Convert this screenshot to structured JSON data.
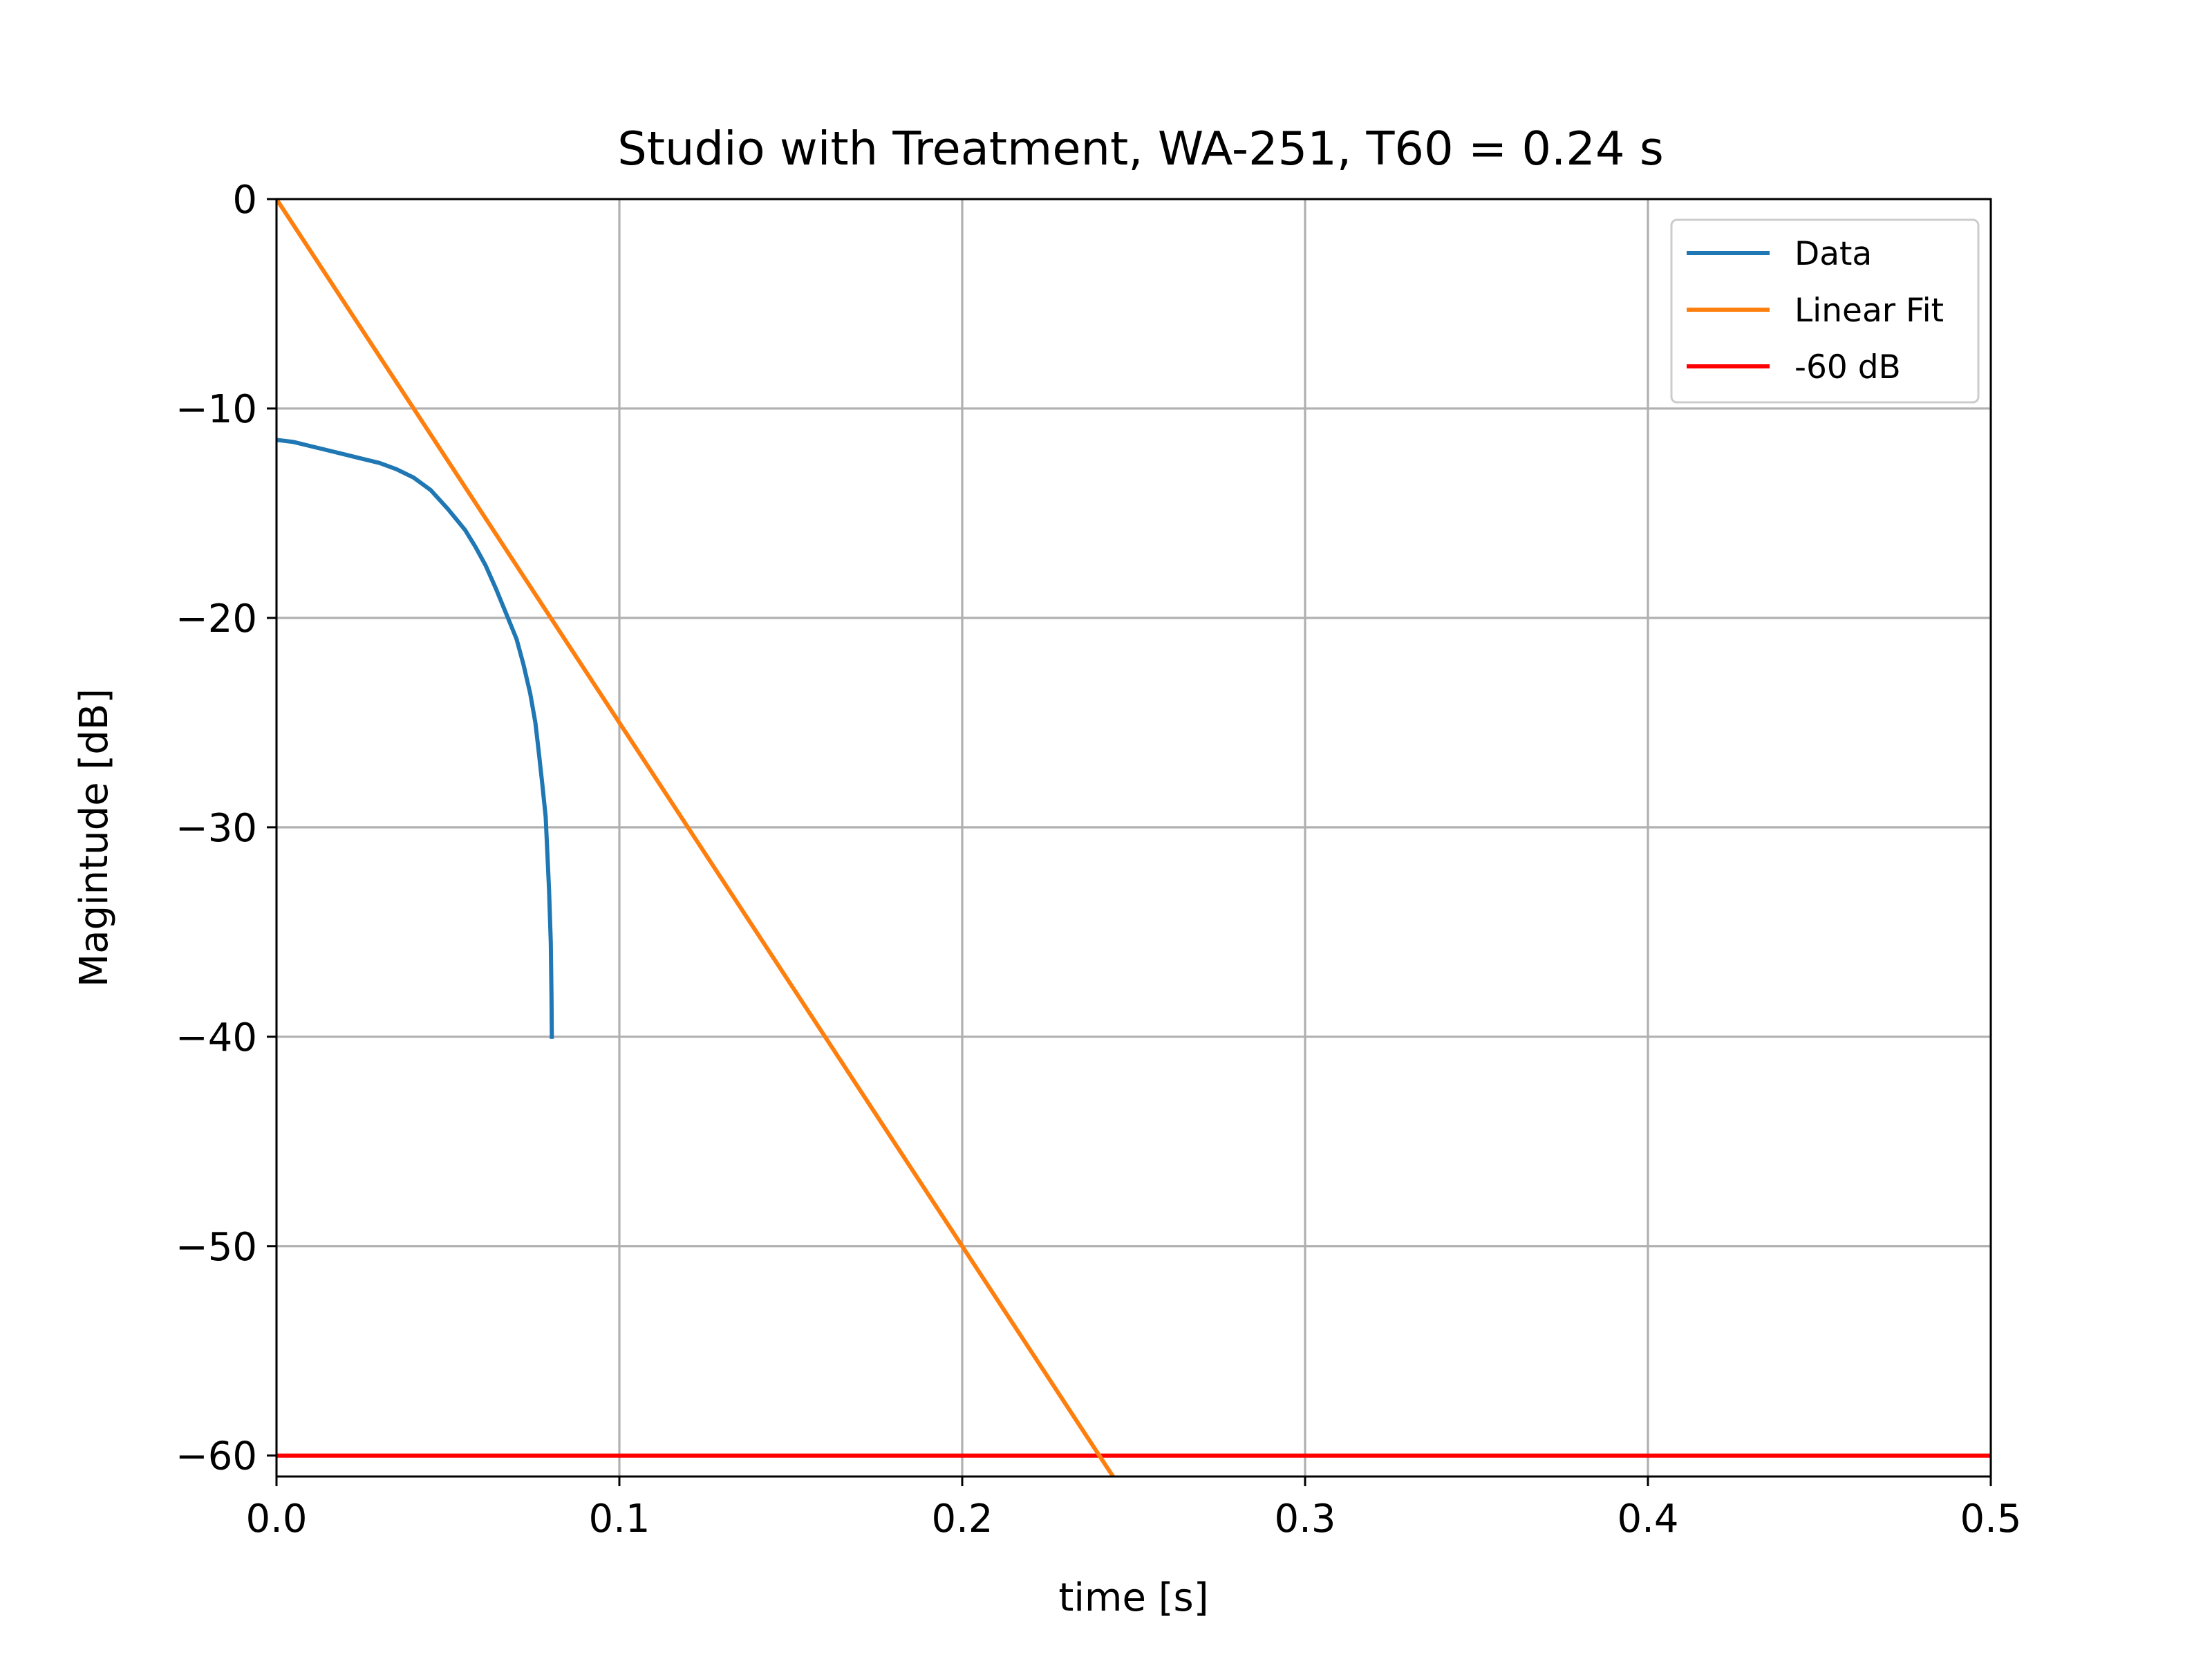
{
  "chart_data": {
    "type": "line",
    "title": "Studio with Treatment, WA-251, T60 = 0.24 s",
    "xlabel": "time [s]",
    "ylabel": "Magintude [dB]",
    "xlim": [
      0.0,
      0.5
    ],
    "ylim": [
      -61,
      0
    ],
    "xticks": [
      0.0,
      0.1,
      0.2,
      0.3,
      0.4,
      0.5
    ],
    "xtick_labels": [
      "0.0",
      "0.1",
      "0.2",
      "0.3",
      "0.4",
      "0.5"
    ],
    "yticks": [
      0,
      -10,
      -20,
      -30,
      -40,
      -50,
      -60
    ],
    "ytick_labels": [
      "0",
      "−10",
      "−20",
      "−30",
      "−40",
      "−50",
      "−60"
    ],
    "grid": true,
    "legend_position": "top-right",
    "series": [
      {
        "name": "Data",
        "color": "#1f77b4",
        "x": [
          0.0,
          0.005,
          0.01,
          0.015,
          0.02,
          0.025,
          0.03,
          0.035,
          0.04,
          0.045,
          0.05,
          0.055,
          0.058,
          0.061,
          0.064,
          0.067,
          0.07,
          0.072,
          0.074,
          0.0755,
          0.0765,
          0.0775,
          0.0785,
          0.079,
          0.0795,
          0.08,
          0.0802,
          0.0803
        ],
        "y": [
          -11.5,
          -11.6,
          -11.8,
          -12.0,
          -12.2,
          -12.4,
          -12.6,
          -12.9,
          -13.3,
          -13.9,
          -14.8,
          -15.8,
          -16.6,
          -17.5,
          -18.6,
          -19.8,
          -21.0,
          -22.2,
          -23.6,
          -25.0,
          -26.4,
          -27.9,
          -29.5,
          -31.2,
          -33.0,
          -35.5,
          -38.0,
          -40.0
        ]
      },
      {
        "name": "Linear Fit",
        "color": "#ff7f0e",
        "x": [
          0.0,
          0.244
        ],
        "y": [
          0.0,
          -61.0
        ]
      },
      {
        "name": "-60 dB",
        "color": "#ff0000",
        "x": [
          0.0,
          0.5
        ],
        "y": [
          -60,
          -60
        ]
      }
    ]
  }
}
